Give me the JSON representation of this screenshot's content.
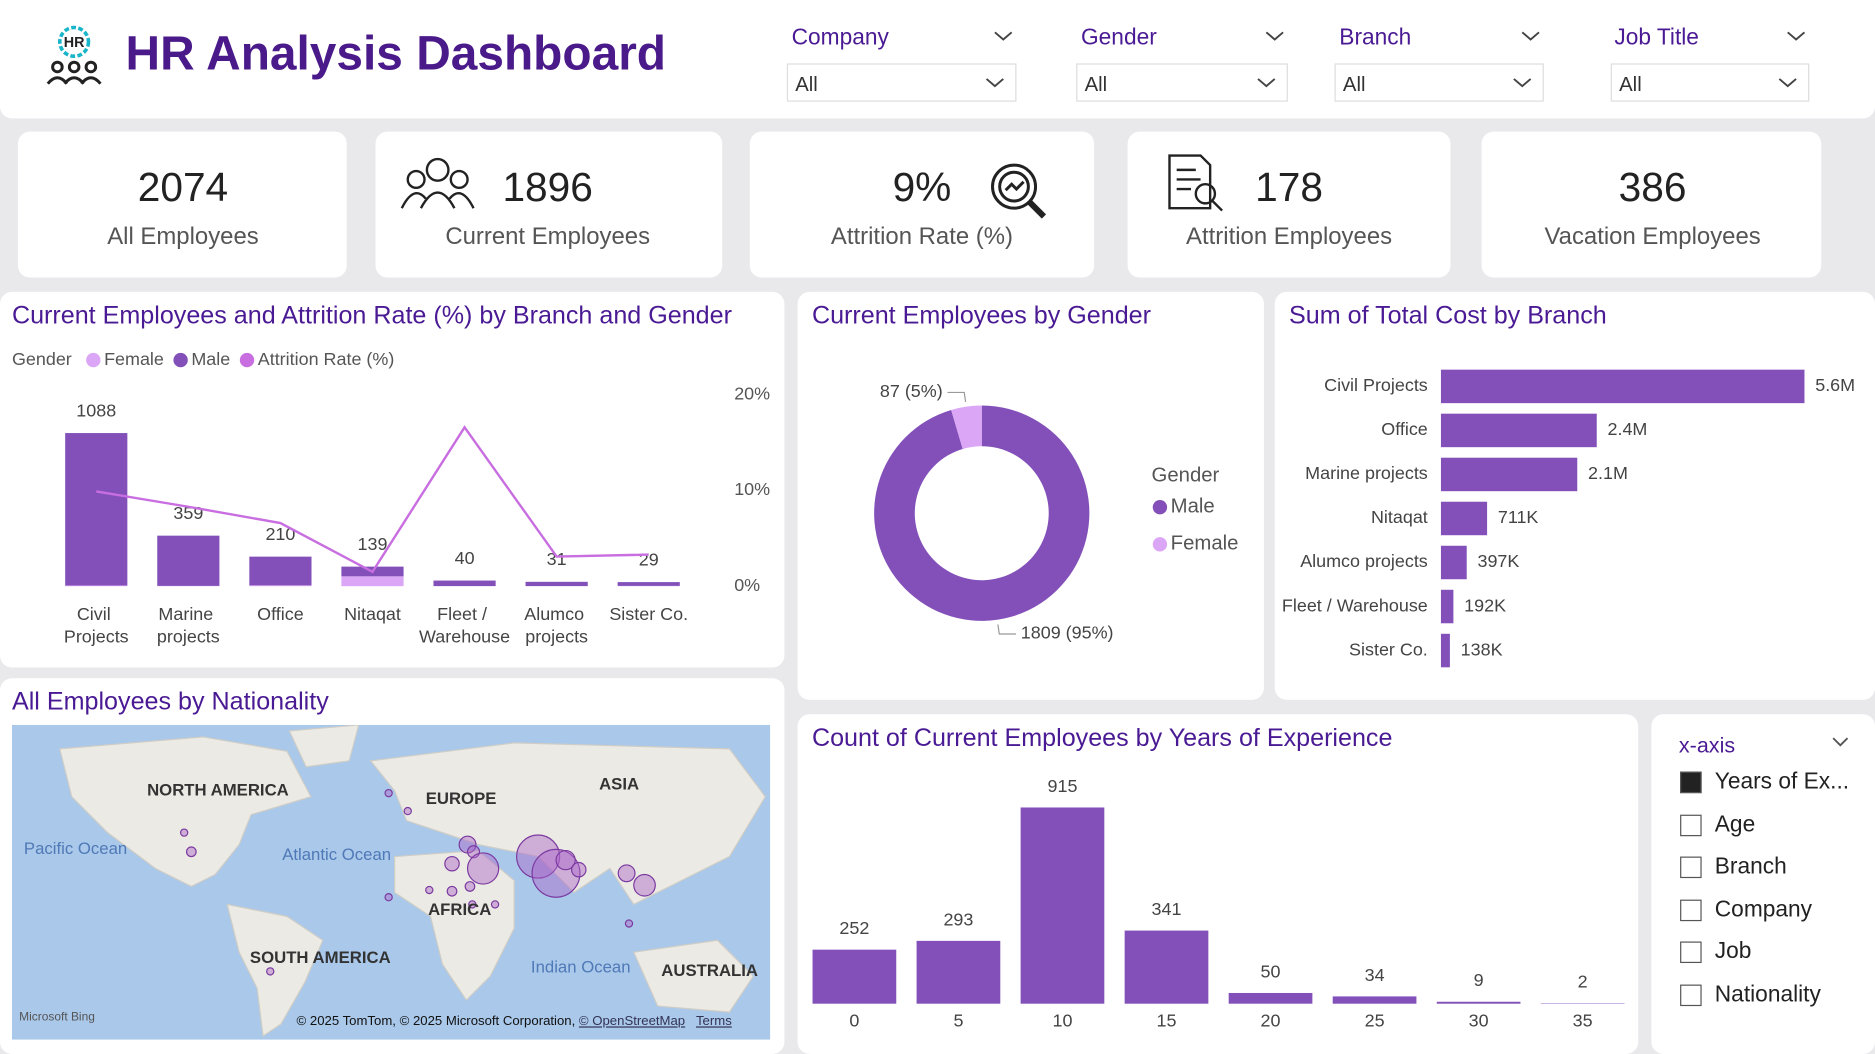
{
  "header": {
    "icon_text": "HR",
    "title": "HR Analysis Dashboard"
  },
  "filters": [
    {
      "label": "Company",
      "value": "All"
    },
    {
      "label": "Gender",
      "value": "All"
    },
    {
      "label": "Branch",
      "value": "All"
    },
    {
      "label": "Job Title",
      "value": "All"
    }
  ],
  "kpis": [
    {
      "value": 2074,
      "label": "All Employees"
    },
    {
      "value": 1896,
      "label": "Current Employees"
    },
    {
      "value": "9%",
      "label": "Attrition Rate (%)"
    },
    {
      "value": 178,
      "label": "Attrition Employees"
    },
    {
      "value": 386,
      "label": "Vacation Employees"
    }
  ],
  "chart_data": [
    {
      "type": "combo",
      "title": "Current Employees and Attrition Rate (%) by Branch and Gender",
      "legend_title": "Gender",
      "categories": [
        "Civil Projects",
        "Marine projects",
        "Office",
        "Nitaqat",
        "Fleet / Warehouse",
        "Alumco projects",
        "Sister Co."
      ],
      "series": [
        {
          "name": "Female",
          "color": "#dba6f5",
          "values": [
            5,
            2,
            6,
            70,
            1,
            1,
            2
          ]
        },
        {
          "name": "Male",
          "color": "#8350ba",
          "values": [
            1083,
            357,
            204,
            69,
            39,
            30,
            27
          ]
        },
        {
          "name": "Attrition Rate (%)",
          "color": "#c86ee0",
          "type": "line",
          "axis": "y2",
          "values": [
            9.9,
            8.3,
            6.6,
            1.5,
            16.6,
            3.1,
            3.3
          ]
        }
      ],
      "totals": [
        1088,
        359,
        210,
        139,
        40,
        31,
        29
      ],
      "ylim": [
        0,
        1360
      ],
      "y2lim": [
        0,
        20
      ],
      "y2ticks": [
        {
          "value": 0,
          "label": "0%"
        },
        {
          "value": 10,
          "label": "10%"
        },
        {
          "value": 20,
          "label": "20%"
        }
      ]
    },
    {
      "type": "donut",
      "title": "Current Employees by Gender",
      "legend_title": "Gender",
      "categories": [
        "Male",
        "Female"
      ],
      "values": [
        1809,
        87
      ],
      "value_labels": [
        "1809 (95%)",
        "87 (5%)"
      ],
      "colors": [
        "#8350ba",
        "#dba6f5"
      ]
    },
    {
      "type": "hbar",
      "title": "Sum of Total Cost by Branch",
      "categories": [
        "Civil Projects",
        "Office",
        "Marine projects",
        "Nitaqat",
        "Alumco projects",
        "Fleet / Warehouse",
        "Sister Co."
      ],
      "values": [
        5600000,
        2400000,
        2100000,
        711000,
        397000,
        192000,
        138000
      ],
      "value_labels": [
        "5.6M",
        "2.4M",
        "2.1M",
        "711K",
        "397K",
        "192K",
        "138K"
      ],
      "color": "#8350ba",
      "xlim": [
        0,
        5600000
      ]
    },
    {
      "type": "bar",
      "title": "Count of Current Employees by Years of Experience",
      "categories": [
        0,
        5,
        10,
        15,
        20,
        25,
        30,
        35
      ],
      "values": [
        252,
        293,
        915,
        341,
        50,
        34,
        9,
        2
      ],
      "color": "#8350ba",
      "ylim": [
        0,
        1080
      ]
    }
  ],
  "map": {
    "title": "All Employees by Nationality",
    "labels": [
      "NORTH AMERICA",
      "EUROPE",
      "ASIA",
      "AFRICA",
      "SOUTH AMERICA",
      "AUSTRALIA",
      "Pacific Ocean",
      "Atlantic Ocean",
      "Indian Ocean"
    ],
    "brand": "Microsoft Bing",
    "attribution": "© 2025 TomTom, © 2025 Microsoft Corporation,",
    "osm": "© OpenStreetMap",
    "terms": "Terms"
  },
  "slicer": {
    "title": "x-axis",
    "options": [
      "Years of Ex...",
      "Age",
      "Branch",
      "Company",
      "Job",
      "Nationality"
    ],
    "selected": 0
  }
}
